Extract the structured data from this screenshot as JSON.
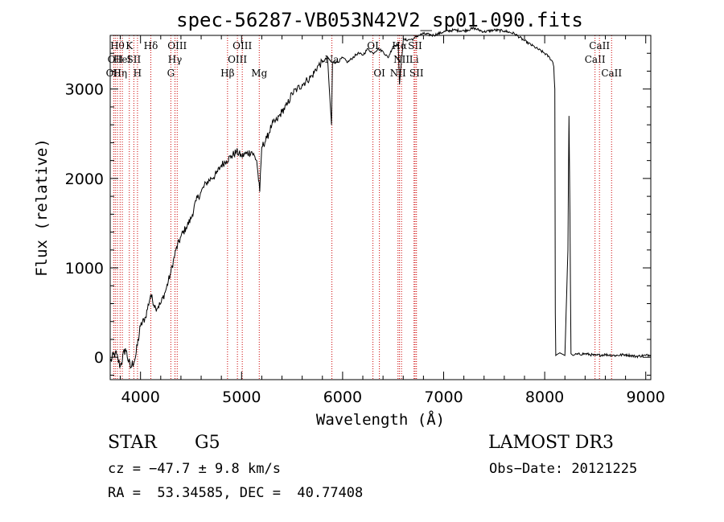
{
  "chart_data": {
    "type": "line",
    "title": "spec-56287-VB053N42V2_sp01-090.fits",
    "xlabel": "Wavelength (Å)",
    "ylabel": "Flux (relative)",
    "xlim": [
      3700,
      9050
    ],
    "ylim": [
      -250,
      3600
    ],
    "xticks": [
      4000,
      5000,
      6000,
      7000,
      8000,
      9000
    ],
    "yticks": [
      0,
      1000,
      2000,
      3000
    ],
    "series": [
      {
        "x": [
          3700,
          3750,
          3800,
          3850,
          3900,
          3950,
          4000,
          4050,
          4100,
          4150,
          4200,
          4250,
          4300,
          4350,
          4400,
          4450,
          4500,
          4550,
          4600,
          4650,
          4700,
          4750,
          4800,
          4850,
          4900,
          4950,
          5000,
          5050,
          5100,
          5150,
          5180,
          5200,
          5250,
          5300,
          5350,
          5400,
          5450,
          5500,
          5550,
          5600,
          5650,
          5700,
          5750,
          5800,
          5850,
          5890,
          5900,
          5950,
          6000,
          6050,
          6100,
          6150,
          6200,
          6250,
          6300,
          6350,
          6400,
          6450,
          6500,
          6550,
          6563,
          6600,
          6650,
          6700,
          6750,
          6800,
          6900,
          7000,
          7100,
          7200,
          7300,
          7400,
          7500,
          7600,
          7700,
          7800,
          7900,
          8000,
          8050,
          8080,
          8090,
          8100,
          8105,
          8110,
          8120,
          8150,
          8200,
          8230,
          8240,
          8250,
          8260,
          8270,
          8280,
          8300,
          8400,
          8500,
          8600,
          8700,
          8800,
          8900,
          9000,
          9050
        ],
        "y": [
          -50,
          50,
          -100,
          100,
          -120,
          0,
          350,
          450,
          700,
          550,
          600,
          750,
          950,
          1200,
          1350,
          1450,
          1550,
          1750,
          1850,
          1950,
          2000,
          2050,
          2150,
          2200,
          2250,
          2300,
          2250,
          2280,
          2300,
          2200,
          1850,
          2350,
          2450,
          2600,
          2650,
          2750,
          2820,
          2950,
          3000,
          3050,
          3100,
          3150,
          3250,
          3300,
          3350,
          2600,
          3300,
          3300,
          3350,
          3300,
          3350,
          3400,
          3380,
          3450,
          3400,
          3450,
          3420,
          3350,
          3480,
          3500,
          3050,
          3550,
          3550,
          3560,
          3600,
          3620,
          3600,
          3640,
          3660,
          3650,
          3680,
          3640,
          3660,
          3650,
          3620,
          3540,
          3470,
          3400,
          3350,
          3300,
          3250,
          3000,
          500,
          20,
          30,
          50,
          20,
          1200,
          2700,
          1600,
          40,
          30,
          20,
          30,
          40,
          20,
          30,
          20,
          30,
          10,
          20,
          30
        ]
      }
    ],
    "lines": [
      {
        "x": 3734,
        "label": "OII",
        "row": 2
      },
      {
        "x": 3750,
        "label": "OII",
        "row": 1
      },
      {
        "x": 3771,
        "label": "Hθ",
        "row": 0
      },
      {
        "x": 3798,
        "label": "Hη",
        "row": 2
      },
      {
        "x": 3820,
        "label": "HeI",
        "row": 1
      },
      {
        "x": 3889,
        "label": "K",
        "row": 0
      },
      {
        "x": 3934,
        "label": "SII",
        "row": 1
      },
      {
        "x": 3970,
        "label": "H",
        "row": 2
      },
      {
        "x": 4102,
        "label": "Hδ",
        "row": 0
      },
      {
        "x": 4300,
        "label": "G",
        "row": 2
      },
      {
        "x": 4341,
        "label": "Hγ",
        "row": 1
      },
      {
        "x": 4363,
        "label": "OIII",
        "row": 0
      },
      {
        "x": 4861,
        "label": "Hβ",
        "row": 2
      },
      {
        "x": 4959,
        "label": "OIII",
        "row": 1
      },
      {
        "x": 5007,
        "label": "OIII",
        "row": 0
      },
      {
        "x": 5175,
        "label": "Mg",
        "row": 2
      },
      {
        "x": 5894,
        "label": "Na",
        "row": 1
      },
      {
        "x": 6300,
        "label": "OI",
        "row": 0
      },
      {
        "x": 6364,
        "label": "OI",
        "row": 2
      },
      {
        "x": 6548,
        "label": "NII",
        "row": 2
      },
      {
        "x": 6563,
        "label": "Hα",
        "row": 0
      },
      {
        "x": 6583,
        "label": "NII",
        "row": 1
      },
      {
        "x": 6707,
        "label": "Li",
        "row": 1
      },
      {
        "x": 6717,
        "label": "SII",
        "row": 0
      },
      {
        "x": 6731,
        "label": "SII",
        "row": 2
      },
      {
        "x": 8498,
        "label": "CaII",
        "row": 1
      },
      {
        "x": 8542,
        "label": "CaII",
        "row": 0
      },
      {
        "x": 8662,
        "label": "CaII",
        "row": 2
      }
    ],
    "line_color": "#cc0000"
  },
  "info": {
    "class": "STAR",
    "subclass": "G5",
    "survey": "LAMOST DR3",
    "cz": "cz = −47.7 ± 9.8 km/s",
    "obs_date": "Obs−Date: 20121225",
    "coords": "RA =  53.34585, DEC =  40.77408"
  }
}
